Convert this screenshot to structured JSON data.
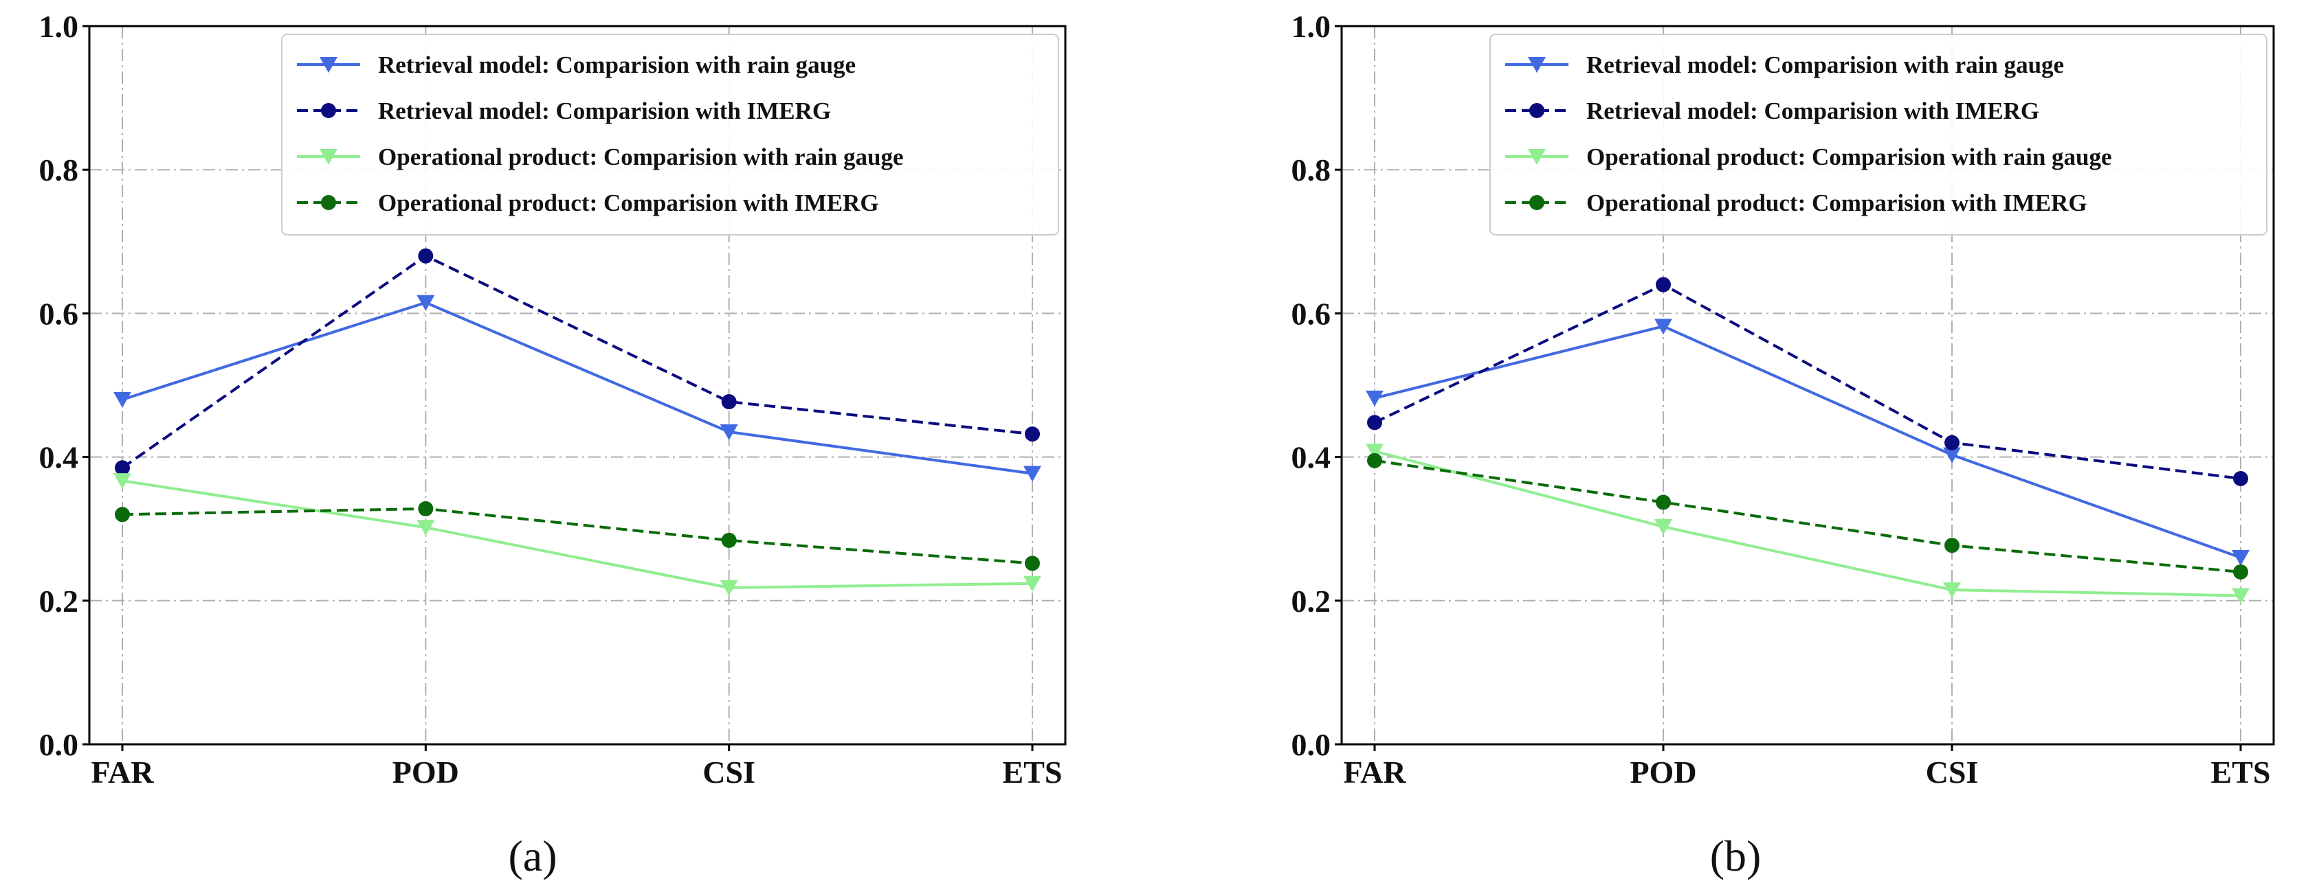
{
  "chart_data": [
    {
      "type": "line",
      "panel_label": "(a)",
      "categories": [
        "FAR",
        "POD",
        "CSI",
        "ETS"
      ],
      "y_ticks": [
        "0.0",
        "0.2",
        "0.4",
        "0.6",
        "0.8",
        "1.0"
      ],
      "ylim": [
        0,
        1.0
      ],
      "grid": true,
      "legend_position": "top-right",
      "series": [
        {
          "name": "Retrieval model: Comparision with rain gauge",
          "color": "#4169E1",
          "dashed": false,
          "marker": "triangle-down",
          "values": [
            0.48,
            0.615,
            0.435,
            0.377
          ]
        },
        {
          "name": "Retrieval model: Comparision with IMERG",
          "color": "#0B0B80",
          "dashed": true,
          "marker": "circle",
          "values": [
            0.385,
            0.68,
            0.477,
            0.432
          ]
        },
        {
          "name": "Operational product: Comparision with rain gauge",
          "color": "#90EE90",
          "dashed": false,
          "marker": "triangle-down",
          "values": [
            0.367,
            0.302,
            0.218,
            0.224
          ]
        },
        {
          "name": "Operational product: Comparision with IMERG",
          "color": "#0B6B0B",
          "dashed": true,
          "marker": "circle",
          "values": [
            0.32,
            0.328,
            0.284,
            0.252
          ]
        }
      ]
    },
    {
      "type": "line",
      "panel_label": "(b)",
      "categories": [
        "FAR",
        "POD",
        "CSI",
        "ETS"
      ],
      "y_ticks": [
        "0.0",
        "0.2",
        "0.4",
        "0.6",
        "0.8",
        "1.0"
      ],
      "ylim": [
        0,
        1.0
      ],
      "grid": true,
      "legend_position": "top-right",
      "series": [
        {
          "name": "Retrieval model: Comparision with rain gauge",
          "color": "#4169E1",
          "dashed": false,
          "marker": "triangle-down",
          "values": [
            0.482,
            0.582,
            0.403,
            0.26
          ]
        },
        {
          "name": "Retrieval model: Comparision with IMERG",
          "color": "#0B0B80",
          "dashed": true,
          "marker": "circle",
          "values": [
            0.448,
            0.64,
            0.42,
            0.37
          ]
        },
        {
          "name": "Operational product: Comparision with rain gauge",
          "color": "#90EE90",
          "dashed": false,
          "marker": "triangle-down",
          "values": [
            0.408,
            0.303,
            0.215,
            0.207
          ]
        },
        {
          "name": "Operational product: Comparision with IMERG",
          "color": "#0B6B0B",
          "dashed": true,
          "marker": "circle",
          "values": [
            0.395,
            0.337,
            0.277,
            0.24
          ]
        }
      ]
    }
  ]
}
